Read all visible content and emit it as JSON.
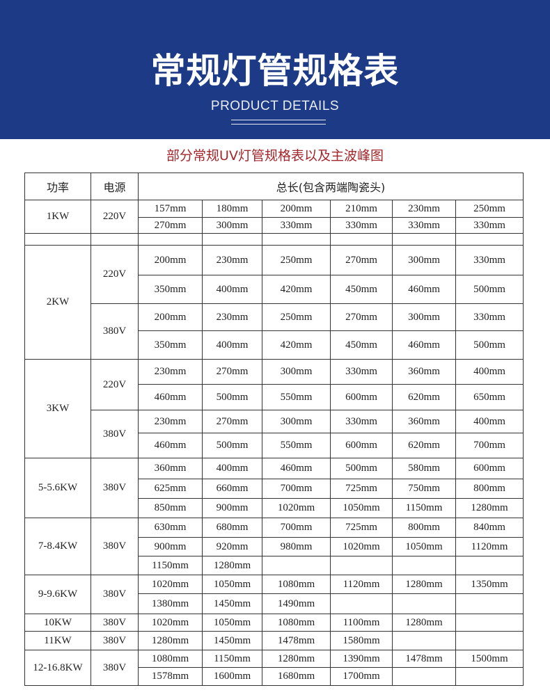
{
  "banner": {
    "title": "常规灯管规格表",
    "subtitle": "PRODUCT DETAILS"
  },
  "section_title": "部分常规UV灯管规格表以及主波峰图",
  "table": {
    "headers": [
      "功率",
      "电源",
      "总长(包含两端陶瓷头)"
    ],
    "groups": [
      {
        "power": "1KW",
        "supplies": [
          {
            "voltage": "220V",
            "rows": [
              [
                "157mm",
                "180mm",
                "200mm",
                "210mm",
                "230mm",
                "250mm"
              ],
              [
                "270mm",
                "300mm",
                "330mm",
                "330mm",
                "330mm",
                "330mm"
              ]
            ]
          }
        ]
      },
      {
        "power": "",
        "supplies": [
          {
            "voltage": "",
            "rows": [
              [
                "",
                "",
                "",
                "",
                "",
                ""
              ]
            ]
          }
        ]
      },
      {
        "power": "2KW",
        "supplies": [
          {
            "voltage": "220V",
            "rows": [
              [
                "200mm",
                "230mm",
                "250mm",
                "270mm",
                "300mm",
                "330mm"
              ],
              [
                "350mm",
                "400mm",
                "420mm",
                "450mm",
                "460mm",
                "500mm"
              ]
            ]
          },
          {
            "voltage": "380V",
            "rows": [
              [
                "200mm",
                "230mm",
                "250mm",
                "270mm",
                "300mm",
                "330mm"
              ],
              [
                "350mm",
                "400mm",
                "420mm",
                "450mm",
                "460mm",
                "500mm"
              ]
            ]
          }
        ]
      },
      {
        "power": "3KW",
        "supplies": [
          {
            "voltage": "220V",
            "rows": [
              [
                "230mm",
                "270mm",
                "300mm",
                "330mm",
                "360mm",
                "400mm"
              ],
              [
                "460mm",
                "500mm",
                "550mm",
                "600mm",
                "620mm",
                "650mm"
              ]
            ]
          },
          {
            "voltage": "380V",
            "rows": [
              [
                "230mm",
                "270mm",
                "300mm",
                "330mm",
                "360mm",
                "400mm"
              ],
              [
                "460mm",
                "500mm",
                "550mm",
                "600mm",
                "620mm",
                "700mm"
              ]
            ]
          }
        ]
      },
      {
        "power": "5-5.6KW",
        "supplies": [
          {
            "voltage": "380V",
            "rows": [
              [
                "360mm",
                "400mm",
                "460mm",
                "500mm",
                "580mm",
                "600mm"
              ],
              [
                "625mm",
                "660mm",
                "700mm",
                "725mm",
                "750mm",
                "800mm"
              ],
              [
                "850mm",
                "900mm",
                "1020mm",
                "1050mm",
                "1150mm",
                "1280mm"
              ]
            ]
          }
        ]
      },
      {
        "power": "7-8.4KW",
        "supplies": [
          {
            "voltage": "380V",
            "rows": [
              [
                "630mm",
                "680mm",
                "700mm",
                "725mm",
                "800mm",
                "840mm"
              ],
              [
                "900mm",
                "920mm",
                "980mm",
                "1020mm",
                "1050mm",
                "1120mm"
              ],
              [
                "1150mm",
                "1280mm",
                "",
                "",
                "",
                ""
              ]
            ]
          }
        ]
      },
      {
        "power": "9-9.6KW",
        "supplies": [
          {
            "voltage": "380V",
            "rows": [
              [
                "1020mm",
                "1050mm",
                "1080mm",
                "1120mm",
                "1280mm",
                "1350mm"
              ],
              [
                "1380mm",
                "1450mm",
                "1490mm",
                "",
                "",
                ""
              ]
            ]
          }
        ]
      },
      {
        "power": "10KW",
        "supplies": [
          {
            "voltage": "380V",
            "rows": [
              [
                "1020mm",
                "1050mm",
                "1080mm",
                "1100mm",
                "1280mm",
                ""
              ]
            ]
          }
        ]
      },
      {
        "power": "11KW",
        "supplies": [
          {
            "voltage": "380V",
            "rows": [
              [
                "1280mm",
                "1450mm",
                "1478mm",
                "1580mm",
                "",
                ""
              ]
            ]
          }
        ]
      },
      {
        "power": "12-16.8KW",
        "supplies": [
          {
            "voltage": "380V",
            "rows": [
              [
                "1080mm",
                "1150mm",
                "1280mm",
                "1390mm",
                "1478mm",
                "1500mm"
              ],
              [
                "1578mm",
                "1600mm",
                "1680mm",
                "1700mm",
                "",
                ""
              ]
            ]
          }
        ]
      }
    ]
  }
}
